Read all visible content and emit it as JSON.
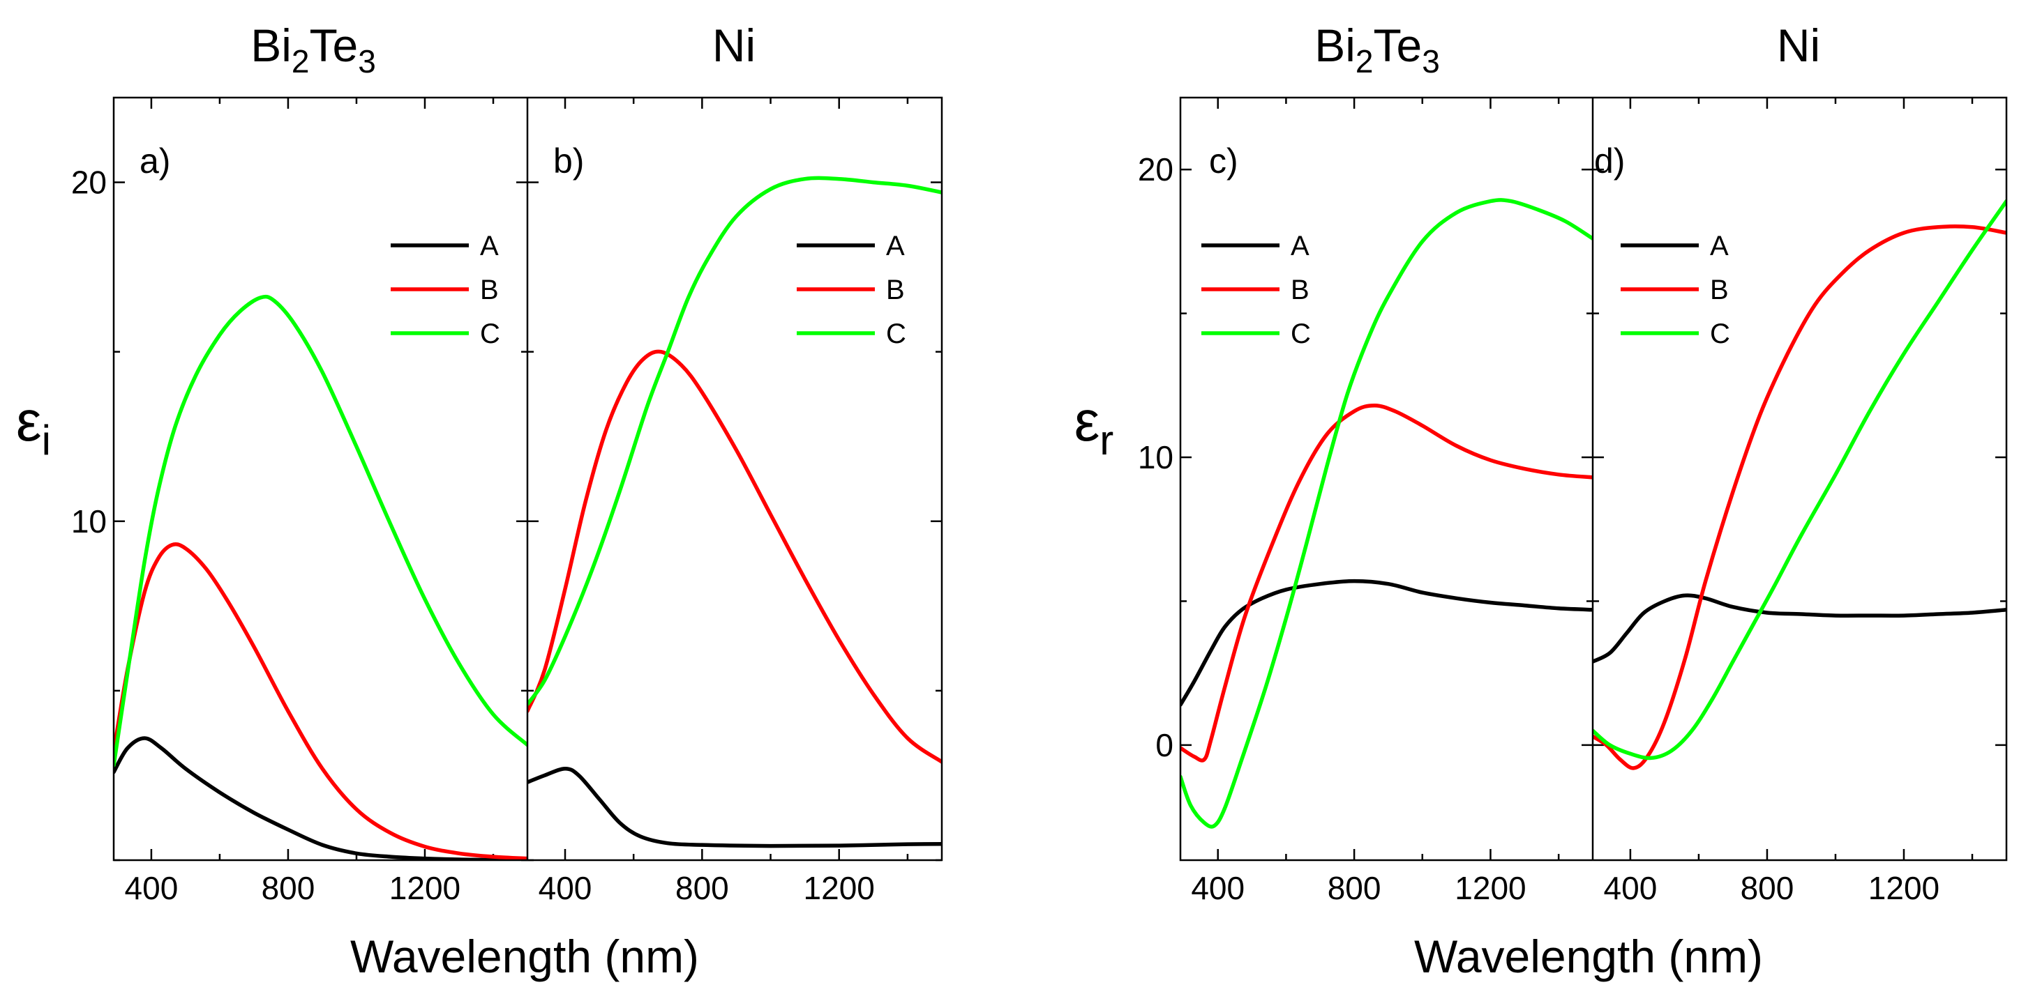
{
  "colors": {
    "A": "#000000",
    "B": "#ff0000",
    "C": "#00ff00"
  },
  "figure": {
    "groups": [
      {
        "ylabel_main": "ε",
        "ylabel_sub": "i",
        "xlabel": "Wavelength (nm)"
      },
      {
        "ylabel_main": "ε",
        "ylabel_sub": "r",
        "xlabel": "Wavelength (nm)"
      }
    ]
  },
  "chart_data": [
    {
      "id": "a",
      "type": "line",
      "panel_label": "a)",
      "title_main": "Bi",
      "title_sub1": "2",
      "title_mid": "Te",
      "title_sub2": "3",
      "xlabel": "Wavelength (nm)",
      "ylabel": "εi",
      "xlim": [
        290,
        1500
      ],
      "ylim": [
        0,
        22.5
      ],
      "xticks": [
        400,
        800,
        1200
      ],
      "yticks": [
        10,
        20
      ],
      "legend_position": "top-right",
      "series": [
        {
          "name": "A",
          "color": "#000000",
          "points": [
            [
              290,
              2.6
            ],
            [
              330,
              3.3
            ],
            [
              380,
              3.6
            ],
            [
              430,
              3.3
            ],
            [
              500,
              2.7
            ],
            [
              600,
              2.0
            ],
            [
              700,
              1.4
            ],
            [
              800,
              0.9
            ],
            [
              900,
              0.45
            ],
            [
              1000,
              0.2
            ],
            [
              1100,
              0.1
            ],
            [
              1200,
              0.05
            ],
            [
              1300,
              0.02
            ],
            [
              1400,
              0.01
            ],
            [
              1500,
              0.0
            ]
          ]
        },
        {
          "name": "B",
          "color": "#ff0000",
          "points": [
            [
              290,
              3.2
            ],
            [
              330,
              5.6
            ],
            [
              380,
              7.9
            ],
            [
              420,
              8.9
            ],
            [
              460,
              9.3
            ],
            [
              500,
              9.2
            ],
            [
              560,
              8.6
            ],
            [
              620,
              7.7
            ],
            [
              700,
              6.3
            ],
            [
              800,
              4.4
            ],
            [
              900,
              2.7
            ],
            [
              1000,
              1.5
            ],
            [
              1100,
              0.8
            ],
            [
              1200,
              0.4
            ],
            [
              1300,
              0.2
            ],
            [
              1400,
              0.1
            ],
            [
              1500,
              0.05
            ]
          ]
        },
        {
          "name": "C",
          "color": "#00ff00",
          "points": [
            [
              290,
              2.8
            ],
            [
              330,
              5.5
            ],
            [
              380,
              8.8
            ],
            [
              420,
              10.9
            ],
            [
              470,
              12.8
            ],
            [
              530,
              14.3
            ],
            [
              600,
              15.5
            ],
            [
              660,
              16.2
            ],
            [
              720,
              16.6
            ],
            [
              760,
              16.5
            ],
            [
              820,
              15.8
            ],
            [
              900,
              14.4
            ],
            [
              1000,
              12.2
            ],
            [
              1100,
              9.9
            ],
            [
              1200,
              7.7
            ],
            [
              1300,
              5.8
            ],
            [
              1400,
              4.3
            ],
            [
              1500,
              3.4
            ]
          ]
        }
      ]
    },
    {
      "id": "b",
      "type": "line",
      "panel_label": "b)",
      "title": "Ni",
      "xlabel": "Wavelength (nm)",
      "ylabel": "εi",
      "xlim": [
        290,
        1500
      ],
      "ylim": [
        0,
        22.5
      ],
      "xticks": [
        400,
        800,
        1200
      ],
      "yticks": [
        10,
        20
      ],
      "legend_position": "top-right",
      "series": [
        {
          "name": "A",
          "color": "#000000",
          "points": [
            [
              290,
              2.3
            ],
            [
              340,
              2.5
            ],
            [
              400,
              2.7
            ],
            [
              440,
              2.5
            ],
            [
              500,
              1.8
            ],
            [
              560,
              1.1
            ],
            [
              620,
              0.7
            ],
            [
              700,
              0.5
            ],
            [
              800,
              0.45
            ],
            [
              1000,
              0.42
            ],
            [
              1200,
              0.43
            ],
            [
              1400,
              0.47
            ],
            [
              1500,
              0.48
            ]
          ]
        },
        {
          "name": "B",
          "color": "#ff0000",
          "points": [
            [
              290,
              4.4
            ],
            [
              340,
              5.6
            ],
            [
              400,
              8.0
            ],
            [
              460,
              10.6
            ],
            [
              520,
              12.7
            ],
            [
              580,
              14.1
            ],
            [
              630,
              14.8
            ],
            [
              680,
              15.0
            ],
            [
              740,
              14.6
            ],
            [
              800,
              13.8
            ],
            [
              900,
              12.1
            ],
            [
              1000,
              10.2
            ],
            [
              1100,
              8.3
            ],
            [
              1200,
              6.5
            ],
            [
              1300,
              4.9
            ],
            [
              1400,
              3.6
            ],
            [
              1500,
              2.9
            ]
          ]
        },
        {
          "name": "C",
          "color": "#00ff00",
          "points": [
            [
              290,
              4.6
            ],
            [
              340,
              5.3
            ],
            [
              400,
              6.6
            ],
            [
              480,
              8.6
            ],
            [
              560,
              10.9
            ],
            [
              640,
              13.4
            ],
            [
              700,
              15.0
            ],
            [
              760,
              16.6
            ],
            [
              820,
              17.8
            ],
            [
              900,
              19.0
            ],
            [
              1000,
              19.8
            ],
            [
              1100,
              20.1
            ],
            [
              1200,
              20.1
            ],
            [
              1300,
              20.0
            ],
            [
              1400,
              19.9
            ],
            [
              1500,
              19.7
            ]
          ]
        }
      ]
    },
    {
      "id": "c",
      "type": "line",
      "panel_label": "c)",
      "title_main": "Bi",
      "title_sub1": "2",
      "title_mid": "Te",
      "title_sub2": "3",
      "xlabel": "Wavelength (nm)",
      "ylabel": "εr",
      "xlim": [
        290,
        1500
      ],
      "ylim": [
        -4,
        22.5
      ],
      "xticks": [
        400,
        800,
        1200
      ],
      "yticks": [
        0,
        10,
        20
      ],
      "legend_position": "top-left",
      "series": [
        {
          "name": "A",
          "color": "#000000",
          "points": [
            [
              290,
              1.4
            ],
            [
              330,
              2.2
            ],
            [
              380,
              3.3
            ],
            [
              420,
              4.1
            ],
            [
              470,
              4.7
            ],
            [
              530,
              5.1
            ],
            [
              600,
              5.4
            ],
            [
              700,
              5.6
            ],
            [
              800,
              5.7
            ],
            [
              900,
              5.6
            ],
            [
              1000,
              5.3
            ],
            [
              1100,
              5.1
            ],
            [
              1200,
              4.95
            ],
            [
              1300,
              4.85
            ],
            [
              1400,
              4.75
            ],
            [
              1500,
              4.7
            ]
          ]
        },
        {
          "name": "B",
          "color": "#ff0000",
          "points": [
            [
              290,
              -0.1
            ],
            [
              330,
              -0.4
            ],
            [
              360,
              -0.5
            ],
            [
              380,
              0.2
            ],
            [
              420,
              2.0
            ],
            [
              480,
              4.5
            ],
            [
              560,
              7.0
            ],
            [
              640,
              9.2
            ],
            [
              720,
              10.8
            ],
            [
              800,
              11.6
            ],
            [
              860,
              11.8
            ],
            [
              920,
              11.6
            ],
            [
              1000,
              11.1
            ],
            [
              1100,
              10.4
            ],
            [
              1200,
              9.9
            ],
            [
              1300,
              9.6
            ],
            [
              1400,
              9.4
            ],
            [
              1500,
              9.3
            ]
          ]
        },
        {
          "name": "C",
          "color": "#00ff00",
          "points": [
            [
              290,
              -1.1
            ],
            [
              320,
              -2.1
            ],
            [
              360,
              -2.7
            ],
            [
              390,
              -2.8
            ],
            [
              420,
              -2.2
            ],
            [
              470,
              -0.5
            ],
            [
              540,
              2.0
            ],
            [
              600,
              4.4
            ],
            [
              660,
              7.0
            ],
            [
              720,
              9.7
            ],
            [
              780,
              12.2
            ],
            [
              840,
              14.1
            ],
            [
              900,
              15.6
            ],
            [
              1000,
              17.5
            ],
            [
              1100,
              18.5
            ],
            [
              1200,
              18.9
            ],
            [
              1260,
              18.9
            ],
            [
              1340,
              18.6
            ],
            [
              1420,
              18.2
            ],
            [
              1500,
              17.6
            ]
          ]
        }
      ]
    },
    {
      "id": "d",
      "type": "line",
      "panel_label": "d)",
      "title": "Ni",
      "xlabel": "Wavelength (nm)",
      "ylabel": "εr",
      "xlim": [
        290,
        1500
      ],
      "ylim": [
        -4,
        22.5
      ],
      "xticks": [
        400,
        800,
        1200
      ],
      "yticks": [
        0,
        10,
        20
      ],
      "legend_position": "top-left",
      "series": [
        {
          "name": "A",
          "color": "#000000",
          "points": [
            [
              290,
              2.9
            ],
            [
              340,
              3.2
            ],
            [
              390,
              3.9
            ],
            [
              440,
              4.6
            ],
            [
              500,
              5.0
            ],
            [
              560,
              5.2
            ],
            [
              620,
              5.1
            ],
            [
              700,
              4.8
            ],
            [
              800,
              4.6
            ],
            [
              900,
              4.55
            ],
            [
              1000,
              4.5
            ],
            [
              1100,
              4.5
            ],
            [
              1200,
              4.5
            ],
            [
              1300,
              4.55
            ],
            [
              1400,
              4.6
            ],
            [
              1500,
              4.7
            ]
          ]
        },
        {
          "name": "B",
          "color": "#ff0000",
          "points": [
            [
              290,
              0.3
            ],
            [
              330,
              0.0
            ],
            [
              370,
              -0.5
            ],
            [
              410,
              -0.8
            ],
            [
              450,
              -0.4
            ],
            [
              500,
              0.8
            ],
            [
              560,
              3.0
            ],
            [
              620,
              5.7
            ],
            [
              700,
              8.8
            ],
            [
              780,
              11.5
            ],
            [
              860,
              13.6
            ],
            [
              940,
              15.3
            ],
            [
              1020,
              16.4
            ],
            [
              1100,
              17.2
            ],
            [
              1200,
              17.8
            ],
            [
              1300,
              18.0
            ],
            [
              1400,
              18.0
            ],
            [
              1500,
              17.8
            ]
          ]
        },
        {
          "name": "C",
          "color": "#00ff00",
          "points": [
            [
              290,
              0.5
            ],
            [
              340,
              0.0
            ],
            [
              400,
              -0.3
            ],
            [
              460,
              -0.45
            ],
            [
              520,
              -0.2
            ],
            [
              580,
              0.5
            ],
            [
              640,
              1.6
            ],
            [
              700,
              2.9
            ],
            [
              760,
              4.2
            ],
            [
              820,
              5.5
            ],
            [
              900,
              7.3
            ],
            [
              1000,
              9.4
            ],
            [
              1100,
              11.6
            ],
            [
              1200,
              13.6
            ],
            [
              1300,
              15.4
            ],
            [
              1400,
              17.2
            ],
            [
              1500,
              18.9
            ]
          ]
        }
      ]
    }
  ]
}
